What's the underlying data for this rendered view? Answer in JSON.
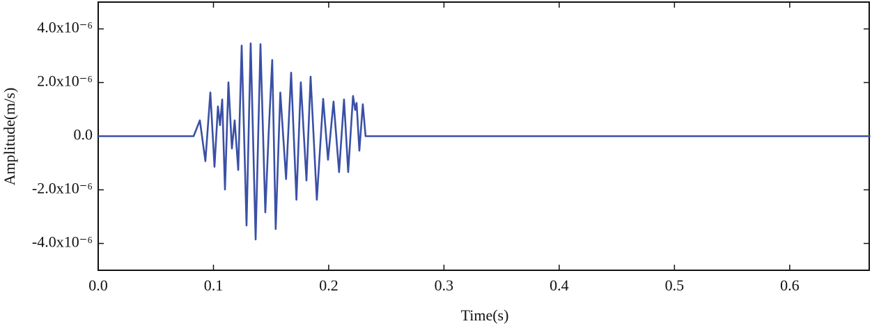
{
  "chart_data": {
    "type": "line",
    "x_label": "Time(s)",
    "y_label": "Amplitude(m/s)",
    "x": [
      0,
      0.0828,
      0.0882,
      0.093,
      0.0973,
      0.1009,
      0.1039,
      0.1057,
      0.1076,
      0.11,
      0.113,
      0.116,
      0.1184,
      0.1215,
      0.1245,
      0.1287,
      0.1323,
      0.1366,
      0.1408,
      0.145,
      0.148,
      0.151,
      0.154,
      0.158,
      0.163,
      0.1674,
      0.172,
      0.1758,
      0.1807,
      0.1843,
      0.1897,
      0.1952,
      0.1994,
      0.2042,
      0.209,
      0.2133,
      0.2169,
      0.2211,
      0.223,
      0.2242,
      0.2266,
      0.2296,
      0.232,
      0.67
    ],
    "series": [
      {
        "color": "#3a50a6",
        "values": [
          0,
          0,
          5.9e-07,
          -9.3e-07,
          1.63e-06,
          -1.14e-06,
          1.11e-06,
          4.1e-07,
          1.37e-06,
          -1.99e-06,
          2.01e-06,
          -4.6e-07,
          5.9e-07,
          -1.26e-06,
          3.38e-06,
          -3.33e-06,
          3.46e-06,
          -3.85e-06,
          3.43e-06,
          -2.84e-06,
          2e-07,
          2.84e-06,
          -3.46e-06,
          1.63e-06,
          -1.6e-06,
          2.37e-06,
          -2.37e-06,
          2.01e-06,
          -1.65e-06,
          2.22e-06,
          -2.37e-06,
          1.39e-06,
          -8.8e-07,
          1.29e-06,
          -1.34e-06,
          1.37e-06,
          -1.34e-06,
          1.5e-06,
          9.8e-07,
          1.24e-06,
          -5.4e-07,
          1.19e-06,
          0,
          0
        ]
      }
    ],
    "xlim": [
      0,
      0.669
    ],
    "xticks": [
      {
        "value": 0,
        "label": "0.0"
      },
      0.1,
      0.2,
      0.3,
      0.4,
      0.5,
      0.6
    ],
    "ylim": [
      -5e-06,
      5e-06
    ],
    "yticks": [
      {
        "value": -4e-06,
        "label": "-4.0x10⁻⁶"
      },
      {
        "value": -2e-06,
        "label": "-2.0x10⁻⁶"
      },
      {
        "value": 0,
        "label": "0.0"
      },
      {
        "value": 2e-06,
        "label": "2.0x10⁻⁶"
      },
      {
        "value": 4e-06,
        "label": "4.0x10⁻⁶"
      }
    ]
  }
}
